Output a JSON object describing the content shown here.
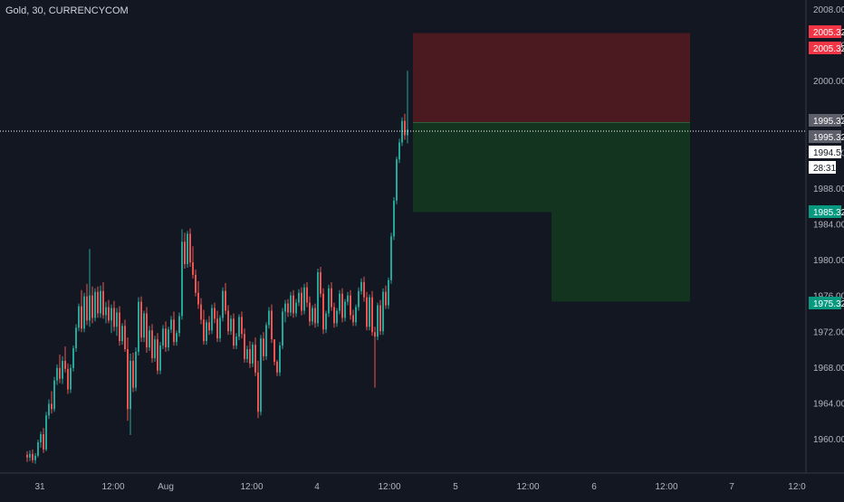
{
  "colors": {
    "background": "#131722",
    "axis_text": "#b2b5be",
    "candle_up": "#26a69a",
    "candle_down": "#ef5350",
    "stop_zone": "#4a1a20",
    "target_zone": "#13351f",
    "stop_badge": "#f23645",
    "target_badge": "#089981",
    "price_line": "#ffffff"
  },
  "chart_data": {
    "type": "candlestick",
    "title": "Gold, 30, CURRENCYCOM",
    "y_axis": {
      "range": [
        1956,
        2010
      ],
      "ticks": [
        "2008.00",
        "2004.00",
        "2000.00",
        "1996.00",
        "1992.00",
        "1988.00",
        "1984.00",
        "1980.00",
        "1976.00",
        "1972.00",
        "1968.00",
        "1964.00",
        "1960.00"
      ]
    },
    "x_axis": {
      "ticks": [
        "31",
        "12:00",
        "Aug",
        "12:00",
        "4",
        "12:00",
        "5",
        "12:00",
        "6",
        "12:00",
        "7",
        "12:0"
      ]
    },
    "candles_ohlc": [
      [
        1958.2,
        1958.6,
        1957.4,
        1957.9
      ],
      [
        1957.9,
        1958.7,
        1957.5,
        1958.3
      ],
      [
        1958.3,
        1958.8,
        1957.3,
        1957.6
      ],
      [
        1957.6,
        1958.4,
        1957.2,
        1958.1
      ],
      [
        1958.1,
        1959.9,
        1957.9,
        1959.6
      ],
      [
        1959.6,
        1960.8,
        1959.0,
        1960.5
      ],
      [
        1960.5,
        1961.2,
        1958.4,
        1958.8
      ],
      [
        1958.8,
        1963.0,
        1958.6,
        1962.6
      ],
      [
        1962.6,
        1964.4,
        1962.2,
        1963.9
      ],
      [
        1963.9,
        1965.3,
        1962.8,
        1963.3
      ],
      [
        1963.3,
        1966.9,
        1963.0,
        1966.5
      ],
      [
        1966.5,
        1968.3,
        1966.0,
        1967.9
      ],
      [
        1967.9,
        1969.4,
        1966.2,
        1966.7
      ],
      [
        1966.7,
        1969.2,
        1966.1,
        1968.7
      ],
      [
        1968.7,
        1970.3,
        1967.4,
        1967.8
      ],
      [
        1967.8,
        1968.4,
        1965.0,
        1965.5
      ],
      [
        1965.5,
        1968.3,
        1965.1,
        1967.9
      ],
      [
        1967.9,
        1970.4,
        1967.5,
        1970.1
      ],
      [
        1970.1,
        1972.8,
        1969.7,
        1972.4
      ],
      [
        1972.4,
        1975.1,
        1972.0,
        1974.8
      ],
      [
        1974.8,
        1976.6,
        1971.9,
        1972.3
      ],
      [
        1972.3,
        1976.3,
        1971.9,
        1975.9
      ],
      [
        1975.9,
        1977.3,
        1972.7,
        1973.2
      ],
      [
        1973.2,
        1981.2,
        1972.5,
        1976.0
      ],
      [
        1976.0,
        1977.0,
        1972.9,
        1973.5
      ],
      [
        1973.5,
        1976.8,
        1973.1,
        1976.4
      ],
      [
        1976.4,
        1977.0,
        1973.5,
        1974.0
      ],
      [
        1974.0,
        1977.1,
        1973.5,
        1976.5
      ],
      [
        1976.5,
        1977.5,
        1973.4,
        1973.8
      ],
      [
        1973.8,
        1975.3,
        1972.9,
        1974.7
      ],
      [
        1974.7,
        1975.5,
        1972.9,
        1973.2
      ],
      [
        1973.2,
        1975.0,
        1971.8,
        1974.6
      ],
      [
        1974.6,
        1975.4,
        1972.0,
        1972.5
      ],
      [
        1972.5,
        1974.6,
        1971.5,
        1974.1
      ],
      [
        1974.1,
        1974.8,
        1970.4,
        1970.9
      ],
      [
        1970.9,
        1972.9,
        1970.5,
        1972.6
      ],
      [
        1972.6,
        1973.3,
        1969.7,
        1970.0
      ],
      [
        1970.0,
        1971.3,
        1962.0,
        1963.3
      ],
      [
        1963.3,
        1969.5,
        1960.4,
        1968.7
      ],
      [
        1968.7,
        1969.6,
        1965.2,
        1965.7
      ],
      [
        1965.7,
        1970.2,
        1965.3,
        1969.7
      ],
      [
        1969.7,
        1975.8,
        1969.3,
        1975.3
      ],
      [
        1975.3,
        1975.9,
        1970.8,
        1971.3
      ],
      [
        1971.3,
        1974.3,
        1970.8,
        1974.0
      ],
      [
        1974.0,
        1974.7,
        1969.6,
        1970.2
      ],
      [
        1970.2,
        1972.6,
        1969.8,
        1972.1
      ],
      [
        1972.1,
        1972.8,
        1968.5,
        1969.0
      ],
      [
        1969.0,
        1971.5,
        1968.6,
        1971.1
      ],
      [
        1971.1,
        1971.8,
        1967.2,
        1967.6
      ],
      [
        1967.6,
        1970.8,
        1967.2,
        1970.4
      ],
      [
        1970.4,
        1972.7,
        1970.0,
        1972.3
      ],
      [
        1972.3,
        1973.1,
        1969.7,
        1970.2
      ],
      [
        1970.2,
        1972.5,
        1969.8,
        1972.2
      ],
      [
        1972.2,
        1973.7,
        1971.8,
        1973.3
      ],
      [
        1973.3,
        1974.2,
        1970.4,
        1970.8
      ],
      [
        1970.8,
        1972.1,
        1970.4,
        1971.8
      ],
      [
        1971.8,
        1974.1,
        1971.4,
        1973.7
      ],
      [
        1973.7,
        1983.4,
        1973.3,
        1982.0
      ],
      [
        1982.0,
        1983.0,
        1979.0,
        1979.5
      ],
      [
        1979.5,
        1983.2,
        1979.1,
        1982.9
      ],
      [
        1982.9,
        1983.5,
        1979.2,
        1979.7
      ],
      [
        1979.7,
        1981.5,
        1977.9,
        1978.3
      ],
      [
        1978.3,
        1978.9,
        1975.9,
        1976.3
      ],
      [
        1976.3,
        1977.6,
        1974.5,
        1975.0
      ],
      [
        1975.0,
        1975.7,
        1972.8,
        1973.3
      ],
      [
        1973.3,
        1974.4,
        1970.5,
        1970.9
      ],
      [
        1970.9,
        1973.3,
        1970.5,
        1973.0
      ],
      [
        1973.0,
        1973.7,
        1971.6,
        1972.1
      ],
      [
        1972.1,
        1975.0,
        1971.7,
        1974.6
      ],
      [
        1974.6,
        1975.2,
        1972.9,
        1973.4
      ],
      [
        1973.4,
        1974.3,
        1970.8,
        1971.2
      ],
      [
        1971.2,
        1973.8,
        1970.8,
        1973.5
      ],
      [
        1973.5,
        1976.9,
        1973.1,
        1976.5
      ],
      [
        1976.5,
        1977.4,
        1973.9,
        1974.3
      ],
      [
        1974.3,
        1974.9,
        1971.6,
        1972.0
      ],
      [
        1972.0,
        1973.8,
        1971.6,
        1973.4
      ],
      [
        1973.4,
        1974.0,
        1970.0,
        1970.4
      ],
      [
        1970.4,
        1971.8,
        1970.0,
        1971.4
      ],
      [
        1971.4,
        1973.9,
        1971.0,
        1973.6
      ],
      [
        1973.6,
        1974.2,
        1971.2,
        1971.7
      ],
      [
        1971.7,
        1972.3,
        1968.5,
        1968.9
      ],
      [
        1968.9,
        1970.4,
        1968.5,
        1970.0
      ],
      [
        1970.0,
        1970.9,
        1967.9,
        1968.4
      ],
      [
        1968.4,
        1970.8,
        1968.0,
        1970.5
      ],
      [
        1970.5,
        1971.3,
        1967.0,
        1967.4
      ],
      [
        1967.4,
        1968.7,
        1962.3,
        1963.0
      ],
      [
        1963.0,
        1971.6,
        1962.6,
        1971.2
      ],
      [
        1971.2,
        1971.9,
        1968.7,
        1969.2
      ],
      [
        1969.2,
        1973.0,
        1968.8,
        1972.7
      ],
      [
        1972.7,
        1974.7,
        1972.3,
        1974.3
      ],
      [
        1974.3,
        1975.0,
        1970.7,
        1971.1
      ],
      [
        1971.1,
        1969.0,
        1968.2,
        1968.6
      ],
      [
        1968.6,
        1968.8,
        1967.0,
        1967.4
      ],
      [
        1967.4,
        1970.8,
        1967.0,
        1970.4
      ],
      [
        1970.4,
        1974.6,
        1970.0,
        1974.2
      ],
      [
        1974.2,
        1975.5,
        1973.0,
        1975.1
      ],
      [
        1975.1,
        1975.6,
        1973.6,
        1974.1
      ],
      [
        1974.1,
        1976.4,
        1973.7,
        1976.0
      ],
      [
        1976.0,
        1976.6,
        1973.5,
        1974.0
      ],
      [
        1974.0,
        1975.6,
        1973.6,
        1975.2
      ],
      [
        1975.2,
        1976.7,
        1974.8,
        1976.3
      ],
      [
        1976.3,
        1976.9,
        1973.8,
        1974.3
      ],
      [
        1974.3,
        1977.3,
        1973.9,
        1976.9
      ],
      [
        1976.9,
        1977.5,
        1974.7,
        1975.2
      ],
      [
        1975.2,
        1975.9,
        1972.6,
        1973.1
      ],
      [
        1973.1,
        1974.9,
        1972.7,
        1974.6
      ],
      [
        1974.6,
        1975.1,
        1972.4,
        1972.9
      ],
      [
        1972.9,
        1979.0,
        1972.5,
        1978.6
      ],
      [
        1978.6,
        1979.2,
        1975.8,
        1976.2
      ],
      [
        1976.2,
        1976.8,
        1971.7,
        1972.2
      ],
      [
        1972.2,
        1974.3,
        1971.8,
        1974.0
      ],
      [
        1974.0,
        1977.2,
        1973.6,
        1976.8
      ],
      [
        1976.8,
        1977.5,
        1974.3,
        1974.7
      ],
      [
        1974.7,
        1975.2,
        1972.4,
        1972.9
      ],
      [
        1972.9,
        1974.6,
        1972.5,
        1974.3
      ],
      [
        1974.3,
        1976.6,
        1973.9,
        1976.2
      ],
      [
        1976.2,
        1976.8,
        1973.0,
        1973.5
      ],
      [
        1973.5,
        1975.6,
        1973.1,
        1975.3
      ],
      [
        1975.3,
        1976.4,
        1974.9,
        1976.0
      ],
      [
        1976.0,
        1976.6,
        1973.3,
        1973.8
      ],
      [
        1973.8,
        1974.4,
        1972.6,
        1973.0
      ],
      [
        1973.0,
        1975.0,
        1972.6,
        1974.7
      ],
      [
        1974.7,
        1976.9,
        1974.3,
        1976.5
      ],
      [
        1976.5,
        1977.9,
        1976.1,
        1977.5
      ],
      [
        1977.5,
        1978.1,
        1975.3,
        1975.8
      ],
      [
        1975.8,
        1976.4,
        1972.1,
        1972.5
      ],
      [
        1972.5,
        1976.1,
        1972.1,
        1975.8
      ],
      [
        1975.8,
        1976.5,
        1971.5,
        1971.9
      ],
      [
        1971.9,
        1972.5,
        1965.7,
        1971.4
      ],
      [
        1971.4,
        1975.2,
        1971.0,
        1974.9
      ],
      [
        1974.9,
        1975.5,
        1971.6,
        1972.0
      ],
      [
        1972.0,
        1976.8,
        1971.6,
        1976.4
      ],
      [
        1976.4,
        1977.1,
        1974.5,
        1974.9
      ],
      [
        1974.9,
        1978.0,
        1974.5,
        1977.7
      ],
      [
        1977.7,
        1983.0,
        1977.3,
        1982.6
      ],
      [
        1982.6,
        1987.0,
        1982.2,
        1986.6
      ],
      [
        1986.6,
        1991.5,
        1986.2,
        1991.2
      ],
      [
        1991.2,
        1993.5,
        1990.8,
        1993.1
      ],
      [
        1993.1,
        1995.9,
        1992.7,
        1995.5
      ],
      [
        1995.5,
        1996.3,
        1993.4,
        1993.9
      ],
      [
        1993.9,
        2001.1,
        1993.0,
        1994.54
      ]
    ],
    "position": {
      "type": "short",
      "entry": 1995.32,
      "stop_loss": 2005.32,
      "take_profit_1": 1985.32,
      "take_profit_2": 1975.32
    },
    "current_price": "1994.54",
    "countdown": "28:31",
    "price_labels": {
      "stop": "2005.32",
      "stop_dup": "2005.32",
      "entry": "1995.32",
      "entry_dup": "1995.32",
      "current": "1994.54",
      "countdown": "28:31",
      "tp1": "1985.32",
      "tp2": "1975.32"
    }
  }
}
